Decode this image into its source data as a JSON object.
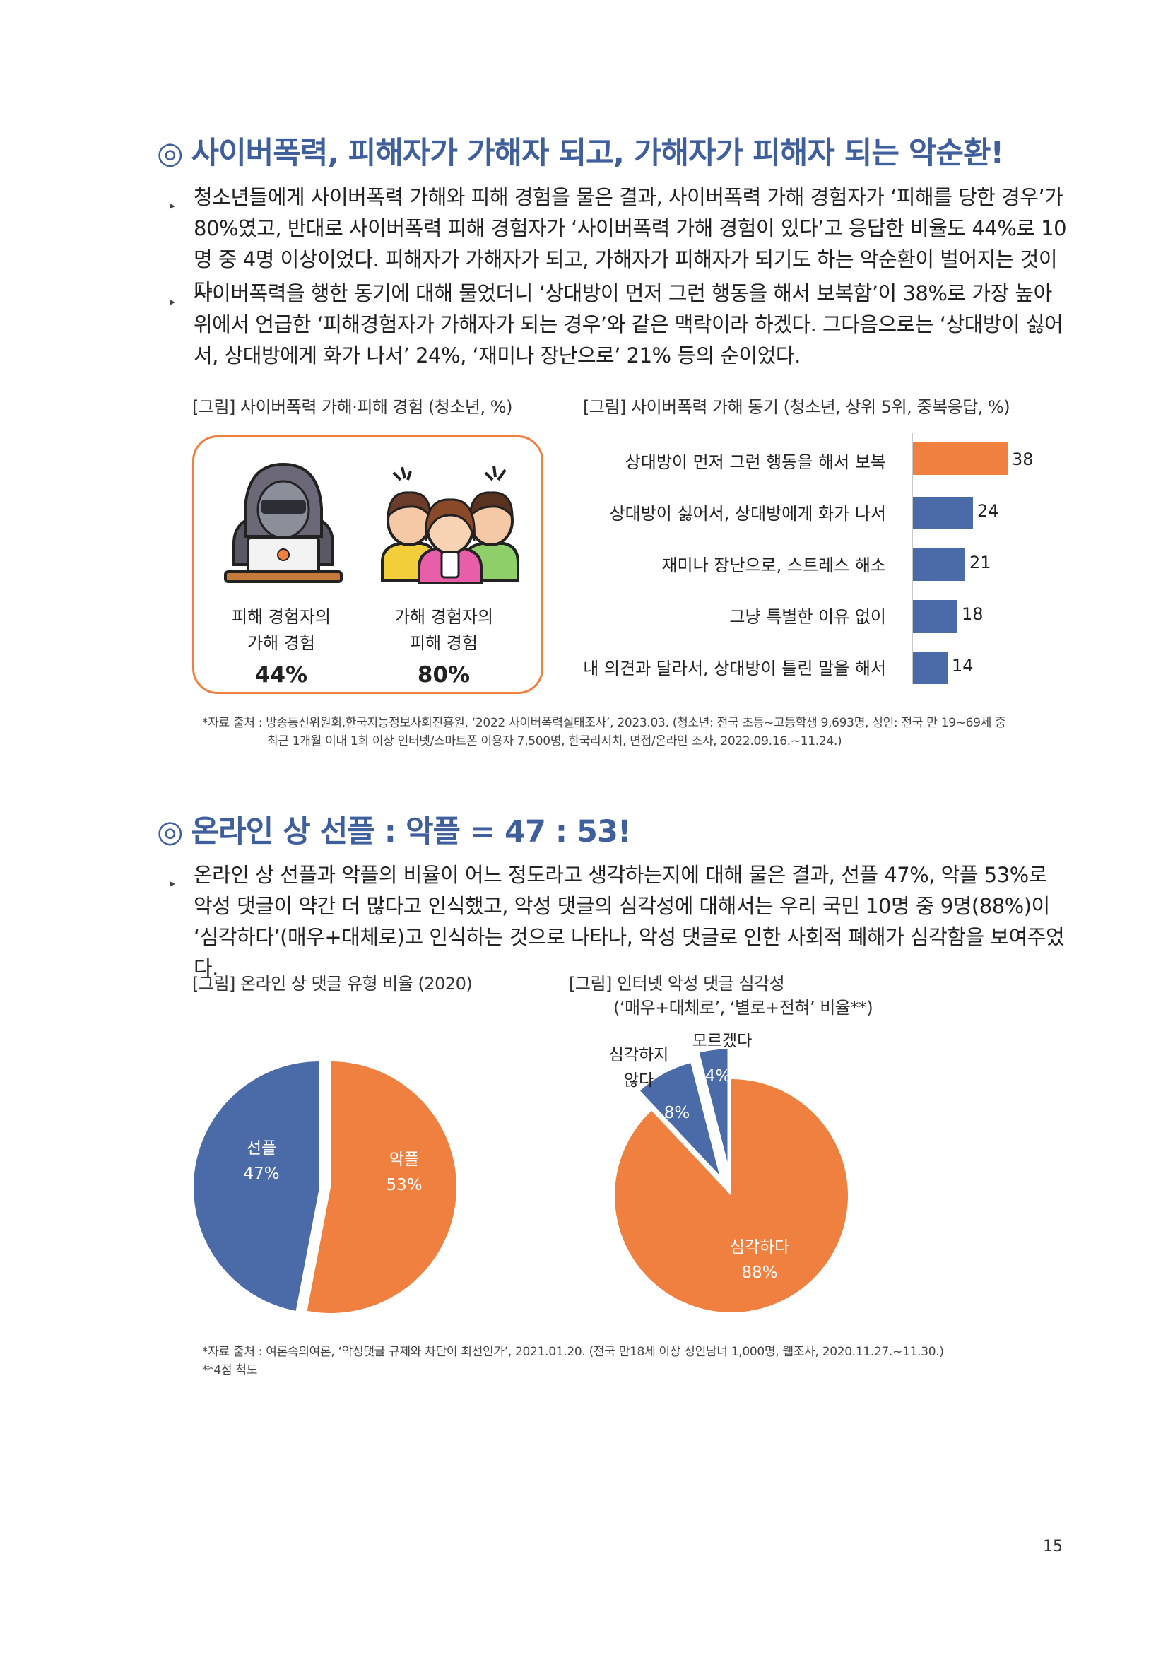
{
  "section1": {
    "heading_mark": "◎",
    "heading": "사이버폭력, 피해자가 가해자 되고, 가해자가 피해자 되는 악순환!",
    "bullets": [
      "청소년들에게 사이버폭력 가해와 피해 경험을 물은 결과, 사이버폭력 가해 경험자가 ‘피해를 당한 경우’가 80%였고, 반대로 사이버폭력 피해 경험자가 ‘사이버폭력 가해 경험이 있다’고 응답한 비율도 44%로 10명 중 4명 이상이었다. 피해자가 가해자가 되고, 가해자가 피해자가 되기도 하는 악순환이 벌어지는 것이다.",
      "사이버폭력을 행한 동기에 대해 물었더니 ‘상대방이 먼저 그런 행동을 해서 보복함’이 38%로 가장 높아 위에서 언급한 ‘피해경험자가 가해자가 되는 경우’와 같은 맥락이라 하겠다. 그다음으로는 ‘상대방이 싫어서, 상대방에게 화가 나서’ 24%, ‘재미나 장난으로’ 21% 등의 순이었다."
    ],
    "fig1_caption": "[그림] 사이버폭력 가해·피해 경험 (청소년, %)",
    "fig1": {
      "left_label_line1": "피해 경험자의",
      "left_label_line2": "가해 경험",
      "left_pct": "44%",
      "right_label_line1": "가해 경험자의",
      "right_label_line2": "피해 경험",
      "right_pct": "80%"
    },
    "fig2_caption": "[그림] 사이버폭력 가해 동기 (청소년, 상위 5위, 중복응답, %)",
    "source_line1": "*자료 출처 : 방송통신위원회,한국지능정보사회진흥원, ‘2022 사이버폭력실태조사’, 2023.03. (청소년: 전국 초등~고등학생 9,693명, 성인: 전국 만 19~69세 중",
    "source_line2": "최근 1개월 이내 1회 이상 인터넷/스마트폰 이용자 7,500명, 한국리서치, 면접/온라인 조사, 2022.09.16.~11.24.)"
  },
  "section2": {
    "heading_mark": "◎",
    "heading": "온라인 상 선플 : 악플 = 47 : 53!",
    "bullet": "온라인 상 선플과 악플의 비율이 어느 정도라고 생각하는지에 대해 물은 결과, 선플 47%, 악플 53%로 악성 댓글이 약간 더 많다고 인식했고, 악성 댓글의 심각성에 대해서는 우리 국민 10명 중 9명(88%)이 ‘심각하다’(매우+대체로)고 인식하는 것으로 나타나, 악성 댓글로 인한 사회적 폐해가 심각함을 보여주었다.",
    "fig3_caption": "[그림] 온라인 상 댓글 유형 비율 (2020)",
    "fig4_caption_line1": "[그림] 인터넷 악성 댓글 심각성",
    "fig4_caption_line2": "(‘매우+대체로’, ‘별로+전혀’ 비율**)",
    "source_line1": "*자료 출처 : 여론속의여론, ‘악성댓글 규제와 차단이 최선인가’, 2021.01.20. (전국 만18세 이상 성인남녀 1,000명, 웹조사, 2020.11.27.~11.30.)",
    "source_line2": "**4점 척도"
  },
  "page_number": "15",
  "colors": {
    "heading": "#3f5f9c",
    "orange": "#f0803f",
    "blue": "#4a6ba8"
  },
  "chart_data": [
    {
      "type": "bar",
      "orientation": "horizontal",
      "categories": [
        "상대방이 먼저 그런 행동을 해서 보복",
        "상대방이 싫어서, 상대방에게 화가 나서",
        "재미나 장난으로, 스트레스 해소",
        "그냥 특별한 이유 없이",
        "내 의견과 달라서, 상대방이 틀린 말을 해서"
      ],
      "values": [
        38,
        24,
        21,
        18,
        14
      ],
      "value_labels": [
        "38",
        "24",
        "21",
        "18",
        "14"
      ],
      "colors": [
        "#f0803f",
        "#4a6ba8",
        "#4a6ba8",
        "#4a6ba8",
        "#4a6ba8"
      ],
      "xlim": [
        0,
        40
      ]
    },
    {
      "type": "pie",
      "labels": [
        "선플",
        "악플"
      ],
      "values": [
        47,
        53
      ],
      "value_labels": [
        "47%",
        "53%"
      ],
      "colors": [
        "#4a6ba8",
        "#f0803f"
      ]
    },
    {
      "type": "pie",
      "labels": [
        "심각하다",
        "심각하지 않다",
        "모르겠다"
      ],
      "values": [
        88,
        8,
        4
      ],
      "value_labels": [
        "88%",
        "8%",
        "4%"
      ],
      "colors": [
        "#f0803f",
        "#4a6ba8",
        "#4a6ba8"
      ]
    }
  ]
}
